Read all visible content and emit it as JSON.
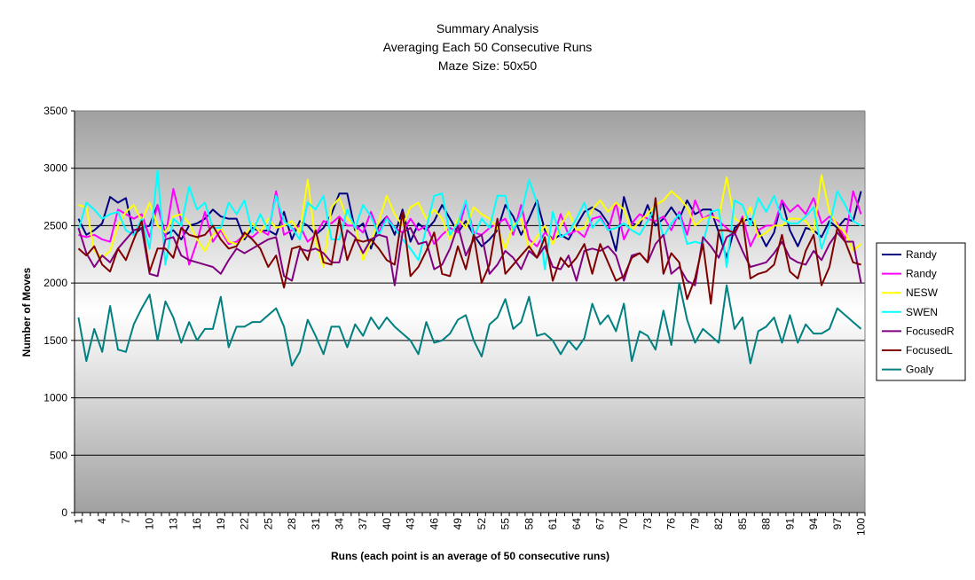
{
  "chart_data": {
    "type": "line",
    "title": "Summary Analysis",
    "subtitle": [
      "Averaging Each 50 Consecutive Runs",
      "Maze Size: 50x50"
    ],
    "xlabel": "Runs (each point is an average of 50 consecutive runs)",
    "ylabel": "Number of Moves",
    "xlim": [
      1,
      100
    ],
    "ylim": [
      0,
      3500
    ],
    "y_ticks": [
      0,
      500,
      1000,
      1500,
      2000,
      2500,
      3000,
      3500
    ],
    "x_tick_labels": [
      1,
      4,
      7,
      10,
      13,
      16,
      19,
      22,
      25,
      28,
      31,
      34,
      37,
      40,
      43,
      46,
      49,
      52,
      55,
      58,
      61,
      64,
      67,
      70,
      73,
      76,
      79,
      82,
      85,
      88,
      91,
      94,
      97,
      100
    ],
    "grid": "horizontal",
    "legend_position": "right",
    "x": [
      1,
      2,
      3,
      4,
      5,
      6,
      7,
      8,
      9,
      10,
      11,
      12,
      13,
      14,
      15,
      16,
      17,
      18,
      19,
      20,
      21,
      22,
      23,
      24,
      25,
      26,
      27,
      28,
      29,
      30,
      31,
      32,
      33,
      34,
      35,
      36,
      37,
      38,
      39,
      40,
      41,
      42,
      43,
      44,
      45,
      46,
      47,
      48,
      49,
      50,
      51,
      52,
      53,
      54,
      55,
      56,
      57,
      58,
      59,
      60,
      61,
      62,
      63,
      64,
      65,
      66,
      67,
      68,
      69,
      70,
      71,
      72,
      73,
      74,
      75,
      76,
      77,
      78,
      79,
      80,
      81,
      82,
      83,
      84,
      85,
      86,
      87,
      88,
      89,
      90,
      91,
      92,
      93,
      94,
      95,
      96,
      97,
      98,
      99,
      100
    ],
    "series": [
      {
        "name": "Randy",
        "color": "#000080",
        "values": [
          2560,
          2420,
          2460,
          2520,
          2750,
          2700,
          2740,
          2420,
          2480,
          2500,
          2680,
          2420,
          2460,
          2380,
          2500,
          2520,
          2560,
          2640,
          2580,
          2560,
          2560,
          2380,
          2480,
          2450,
          2460,
          2420,
          2620,
          2380,
          2540,
          2500,
          2420,
          2480,
          2600,
          2780,
          2780,
          2460,
          2520,
          2300,
          2500,
          2580,
          2420,
          2640,
          2360,
          2520,
          2460,
          2540,
          2680,
          2560,
          2440,
          2540,
          2420,
          2320,
          2380,
          2460,
          2680,
          2580,
          2420,
          2560,
          2720,
          2460,
          2380,
          2420,
          2380,
          2500,
          2620,
          2660,
          2620,
          2520,
          2280,
          2750,
          2520,
          2500,
          2680,
          2500,
          2560,
          2660,
          2560,
          2720,
          2600,
          2640,
          2640,
          2440,
          2220,
          2480,
          2540,
          2560,
          2460,
          2320,
          2440,
          2720,
          2460,
          2320,
          2480,
          2460,
          2400,
          2540,
          2480,
          2560,
          2540,
          2800
        ]
      },
      {
        "name": "Randy",
        "color": "#ff00ff",
        "values": [
          2420,
          2400,
          2420,
          2380,
          2360,
          2640,
          2600,
          2560,
          2600,
          2400,
          2680,
          2400,
          2820,
          2540,
          2160,
          2360,
          2620,
          2360,
          2460,
          2340,
          2360,
          2420,
          2400,
          2460,
          2420,
          2800,
          2420,
          2460,
          2500,
          2360,
          2420,
          2540,
          2520,
          2580,
          2500,
          2500,
          2440,
          2620,
          2440,
          2580,
          2480,
          2440,
          2560,
          2460,
          2500,
          2340,
          2420,
          2480,
          2440,
          2700,
          2440,
          2420,
          2480,
          2520,
          2560,
          2420,
          2680,
          2380,
          2320,
          2440,
          2380,
          2600,
          2420,
          2460,
          2400,
          2560,
          2580,
          2460,
          2700,
          2380,
          2520,
          2600,
          2560,
          2540,
          2580,
          2460,
          2620,
          2420,
          2720,
          2560,
          2600,
          2540,
          2480,
          2420,
          2580,
          2320,
          2460,
          2500,
          2500,
          2720,
          2620,
          2680,
          2600,
          2740,
          2520,
          2580,
          2520,
          2380,
          2800,
          2600
        ]
      },
      {
        "name": "NESW",
        "color": "#ffff00",
        "values": [
          2680,
          2660,
          2280,
          2220,
          2280,
          2500,
          2620,
          2680,
          2540,
          2700,
          2500,
          2440,
          2580,
          2600,
          2520,
          2380,
          2280,
          2420,
          2480,
          2360,
          2340,
          2400,
          2520,
          2440,
          2560,
          2480,
          2500,
          2540,
          2440,
          2900,
          2360,
          2140,
          2660,
          2740,
          2560,
          2500,
          2200,
          2360,
          2540,
          2760,
          2600,
          2500,
          2660,
          2700,
          2560,
          2640,
          2560,
          2380,
          2560,
          2480,
          2660,
          2600,
          2560,
          2480,
          2300,
          2500,
          2560,
          2300,
          2400,
          2500,
          2340,
          2500,
          2620,
          2460,
          2480,
          2640,
          2720,
          2620,
          2700,
          2640,
          2460,
          2540,
          2600,
          2680,
          2720,
          2800,
          2740,
          2660,
          2500,
          2560,
          2580,
          2560,
          2920,
          2560,
          2520,
          2660,
          2400,
          2440,
          2500,
          2500,
          2560,
          2560,
          2540,
          2440,
          2940,
          2620,
          2500,
          2440,
          2280,
          2340
        ]
      },
      {
        "name": "SWEN",
        "color": "#00ffff",
        "values": [
          2460,
          2700,
          2640,
          2560,
          2600,
          2620,
          2460,
          2420,
          2560,
          2300,
          2980,
          2160,
          2560,
          2500,
          2840,
          2640,
          2700,
          2480,
          2480,
          2700,
          2600,
          2720,
          2440,
          2600,
          2460,
          2760,
          2540,
          2480,
          2380,
          2700,
          2640,
          2760,
          2380,
          2380,
          2640,
          2480,
          2680,
          2580,
          2420,
          2560,
          2480,
          2380,
          2300,
          2200,
          2480,
          2760,
          2780,
          2420,
          2520,
          2720,
          2400,
          2560,
          2480,
          2760,
          2760,
          2460,
          2600,
          2900,
          2700,
          2120,
          2620,
          2400,
          2440,
          2560,
          2700,
          2480,
          2560,
          2460,
          2480,
          2520,
          2460,
          2420,
          2540,
          2660,
          2400,
          2520,
          2600,
          2340,
          2360,
          2340,
          2620,
          2640,
          2140,
          2720,
          2680,
          2500,
          2740,
          2620,
          2760,
          2560,
          2520,
          2520,
          2580,
          2660,
          2300,
          2500,
          2800,
          2680,
          2540,
          2500
        ]
      },
      {
        "name": "FocusedR",
        "color": "#800080",
        "values": [
          2480,
          2260,
          2140,
          2240,
          2180,
          2300,
          2380,
          2460,
          2480,
          2080,
          2060,
          2380,
          2400,
          2240,
          2200,
          2180,
          2160,
          2140,
          2080,
          2200,
          2300,
          2260,
          2300,
          2340,
          2380,
          2400,
          2060,
          2020,
          2300,
          2280,
          2300,
          2260,
          2180,
          2180,
          2460,
          2400,
          2260,
          2380,
          2420,
          2400,
          1980,
          2440,
          2480,
          2340,
          2360,
          2120,
          2160,
          2300,
          2500,
          2240,
          2380,
          2420,
          2080,
          2160,
          2280,
          2220,
          2120,
          2280,
          2220,
          2320,
          2140,
          2120,
          2240,
          2020,
          2280,
          2300,
          2280,
          2320,
          2240,
          2020,
          2240,
          2260,
          2180,
          2340,
          2420,
          2080,
          2140,
          2020,
          1980,
          2400,
          2320,
          2220,
          2400,
          2440,
          2280,
          2140,
          2160,
          2180,
          2260,
          2360,
          2220,
          2180,
          2160,
          2280,
          2200,
          2340,
          2440,
          2360,
          2360,
          2000
        ]
      },
      {
        "name": "FocusedL",
        "color": "#800000",
        "values": [
          2300,
          2240,
          2320,
          2160,
          2100,
          2300,
          2200,
          2380,
          2540,
          2100,
          2300,
          2300,
          2220,
          2480,
          2420,
          2400,
          2420,
          2500,
          2380,
          2300,
          2320,
          2440,
          2380,
          2300,
          2140,
          2240,
          1960,
          2300,
          2320,
          2200,
          2460,
          2180,
          2160,
          2560,
          2200,
          2380,
          2360,
          2380,
          2300,
          2200,
          2160,
          2620,
          2060,
          2140,
          2280,
          2440,
          2080,
          2060,
          2320,
          2120,
          2420,
          2000,
          2160,
          2560,
          2080,
          2160,
          2240,
          2320,
          2220,
          2400,
          2020,
          2220,
          2140,
          2220,
          2340,
          2080,
          2340,
          2180,
          2020,
          2060,
          2220,
          2260,
          2180,
          2740,
          2080,
          2260,
          2180,
          1860,
          2040,
          2340,
          1820,
          2460,
          2460,
          2440,
          2560,
          2040,
          2080,
          2100,
          2160,
          2420,
          2100,
          2040,
          2280,
          2420,
          1980,
          2140,
          2480,
          2360,
          2180,
          2160
        ]
      },
      {
        "name": "Goaly",
        "color": "#008080",
        "values": [
          1700,
          1320,
          1600,
          1400,
          1800,
          1420,
          1400,
          1640,
          1780,
          1900,
          1500,
          1840,
          1700,
          1480,
          1660,
          1500,
          1600,
          1600,
          1880,
          1440,
          1620,
          1620,
          1660,
          1660,
          1720,
          1780,
          1620,
          1280,
          1400,
          1680,
          1540,
          1380,
          1620,
          1620,
          1440,
          1640,
          1540,
          1700,
          1600,
          1700,
          1620,
          1560,
          1500,
          1380,
          1660,
          1480,
          1500,
          1560,
          1680,
          1720,
          1500,
          1360,
          1640,
          1700,
          1860,
          1600,
          1660,
          1880,
          1540,
          1560,
          1500,
          1380,
          1500,
          1420,
          1520,
          1820,
          1640,
          1720,
          1580,
          1820,
          1320,
          1580,
          1540,
          1420,
          1760,
          1460,
          2000,
          1680,
          1480,
          1600,
          1540,
          1480,
          1980,
          1600,
          1700,
          1300,
          1580,
          1620,
          1700,
          1480,
          1720,
          1480,
          1640,
          1560,
          1560,
          1600,
          1780,
          1720,
          1660,
          1600
        ]
      }
    ]
  }
}
